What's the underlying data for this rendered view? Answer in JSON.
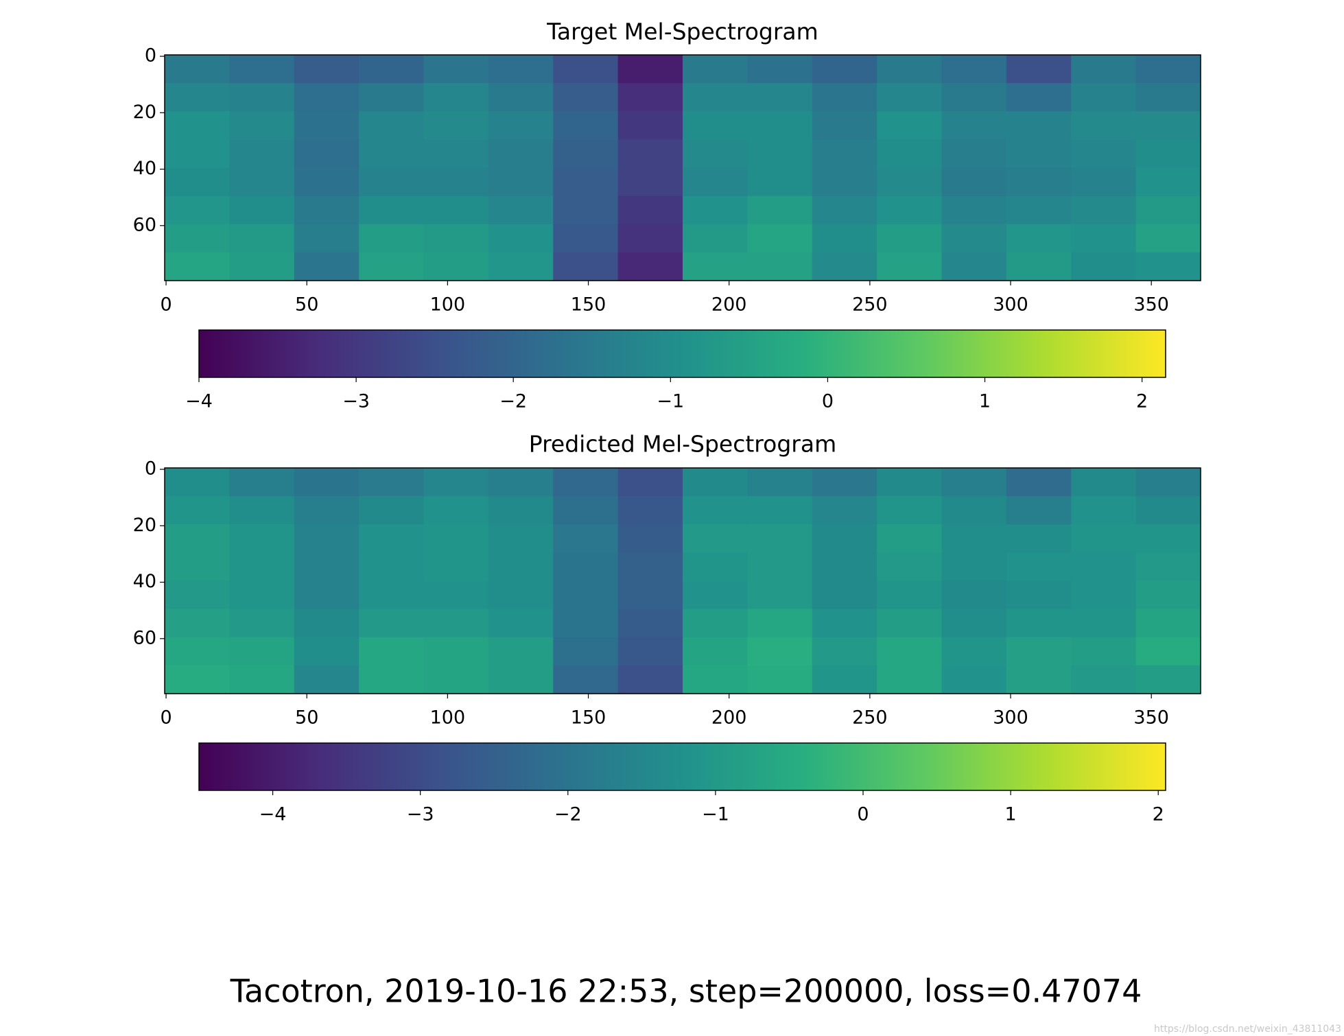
{
  "title": "Tacotron, 2019-10-16 22:53, step=200000, loss=0.47074",
  "watermark": "https://blog.csdn.net/weixin_43811043",
  "chart_data": [
    {
      "type": "heatmap",
      "title": "Target Mel-Spectrogram",
      "colormap": "viridis",
      "xlim": [
        -0.5,
        367.5
      ],
      "ylim": [
        -0.5,
        79.5
      ],
      "invert_y": true,
      "xticks": [
        0,
        50,
        100,
        150,
        200,
        250,
        300,
        350
      ],
      "yticks": [
        0,
        20,
        40,
        60
      ],
      "values": [
        [
          -1.5,
          -1.8,
          -2.2,
          -2,
          -1.6,
          -1.8,
          -2.5,
          -3.5,
          -1.5,
          -1.7,
          -2,
          -1.5,
          -1.8,
          -2.5,
          -1.5,
          -1.8
        ],
        [
          -1.2,
          -1.3,
          -1.8,
          -1.5,
          -1.2,
          -1.5,
          -2.2,
          -3.2,
          -1.2,
          -1.2,
          -1.6,
          -1.2,
          -1.5,
          -1.8,
          -1.3,
          -1.5
        ],
        [
          -0.9,
          -1.1,
          -1.7,
          -1.2,
          -1.1,
          -1.3,
          -2,
          -3,
          -1,
          -1,
          -1.5,
          -0.9,
          -1.3,
          -1.3,
          -1.1,
          -1.1
        ],
        [
          -0.9,
          -1.2,
          -1.8,
          -1.2,
          -1.2,
          -1.4,
          -2.1,
          -2.8,
          -1.1,
          -1,
          -1.4,
          -1,
          -1.4,
          -1.3,
          -1.2,
          -1
        ],
        [
          -1,
          -1.2,
          -1.7,
          -1.3,
          -1.3,
          -1.4,
          -2.2,
          -2.8,
          -1.2,
          -1,
          -1.4,
          -1.1,
          -1.5,
          -1.4,
          -1.3,
          -0.9
        ],
        [
          -0.8,
          -1,
          -1.5,
          -1,
          -1,
          -1.2,
          -2.2,
          -3,
          -0.9,
          -0.6,
          -1.2,
          -0.9,
          -1.3,
          -1.2,
          -1.1,
          -0.7
        ],
        [
          -0.6,
          -0.7,
          -1.4,
          -0.6,
          -0.7,
          -0.9,
          -2.3,
          -3.1,
          -0.7,
          -0.4,
          -1,
          -0.6,
          -1.1,
          -0.8,
          -0.9,
          -0.5
        ],
        [
          -0.4,
          -0.6,
          -1.6,
          -0.5,
          -0.6,
          -0.8,
          -2.5,
          -3.3,
          -0.5,
          -0.5,
          -1.1,
          -0.5,
          -1.2,
          -0.7,
          -1,
          -0.9
        ]
      ],
      "colorbar": {
        "clim": [
          -4,
          2.15
        ],
        "ticks": [
          {
            "value": -4,
            "label": "−4"
          },
          {
            "value": -3,
            "label": "−3"
          },
          {
            "value": -2,
            "label": "−2"
          },
          {
            "value": -1,
            "label": "−1"
          },
          0,
          1,
          2
        ]
      }
    },
    {
      "type": "heatmap",
      "title": "Predicted Mel-Spectrogram",
      "colormap": "viridis",
      "xlim": [
        -0.5,
        367.5
      ],
      "ylim": [
        -0.5,
        79.5
      ],
      "invert_y": true,
      "xticks": [
        0,
        50,
        100,
        150,
        200,
        250,
        300,
        350
      ],
      "yticks": [
        0,
        20,
        40,
        60
      ],
      "values": [
        [
          -1.3,
          -1.7,
          -2,
          -1.8,
          -1.5,
          -1.7,
          -2.3,
          -2.9,
          -1.4,
          -1.6,
          -1.9,
          -1.4,
          -1.7,
          -2.2,
          -1.4,
          -1.7
        ],
        [
          -1.1,
          -1.3,
          -1.7,
          -1.4,
          -1.2,
          -1.4,
          -2.1,
          -2.7,
          -1.2,
          -1.2,
          -1.5,
          -1.1,
          -1.4,
          -1.7,
          -1.2,
          -1.4
        ],
        [
          -0.9,
          -1.1,
          -1.6,
          -1.2,
          -1.1,
          -1.3,
          -1.9,
          -2.6,
          -1,
          -1,
          -1.4,
          -0.9,
          -1.3,
          -1.3,
          -1.1,
          -1.1
        ],
        [
          -0.9,
          -1.1,
          -1.6,
          -1.2,
          -1.1,
          -1.3,
          -2,
          -2.5,
          -1.1,
          -1,
          -1.4,
          -1,
          -1.3,
          -1.2,
          -1.2,
          -1
        ],
        [
          -1,
          -1.1,
          -1.6,
          -1.2,
          -1.2,
          -1.3,
          -2,
          -2.5,
          -1.2,
          -1,
          -1.4,
          -1.1,
          -1.4,
          -1.3,
          -1.2,
          -0.9
        ],
        [
          -0.8,
          -1,
          -1.4,
          -1,
          -1,
          -1.2,
          -2,
          -2.6,
          -0.9,
          -0.6,
          -1.2,
          -0.9,
          -1.3,
          -1.1,
          -1.1,
          -0.7
        ],
        [
          -0.6,
          -0.7,
          -1.3,
          -0.6,
          -0.7,
          -0.9,
          -2.1,
          -2.7,
          -0.7,
          -0.4,
          -1,
          -0.6,
          -1.1,
          -0.8,
          -0.9,
          -0.5
        ],
        [
          -0.5,
          -0.6,
          -1.5,
          -0.6,
          -0.7,
          -0.9,
          -2.3,
          -2.9,
          -0.6,
          -0.5,
          -1.1,
          -0.6,
          -1.2,
          -0.8,
          -1,
          -0.9
        ]
      ],
      "colorbar": {
        "clim": [
          -4.5,
          2.05
        ],
        "ticks": [
          {
            "value": -4,
            "label": "−4"
          },
          {
            "value": -3,
            "label": "−3"
          },
          {
            "value": -2,
            "label": "−2"
          },
          {
            "value": -1,
            "label": "−1"
          },
          0,
          1,
          2
        ]
      }
    }
  ]
}
